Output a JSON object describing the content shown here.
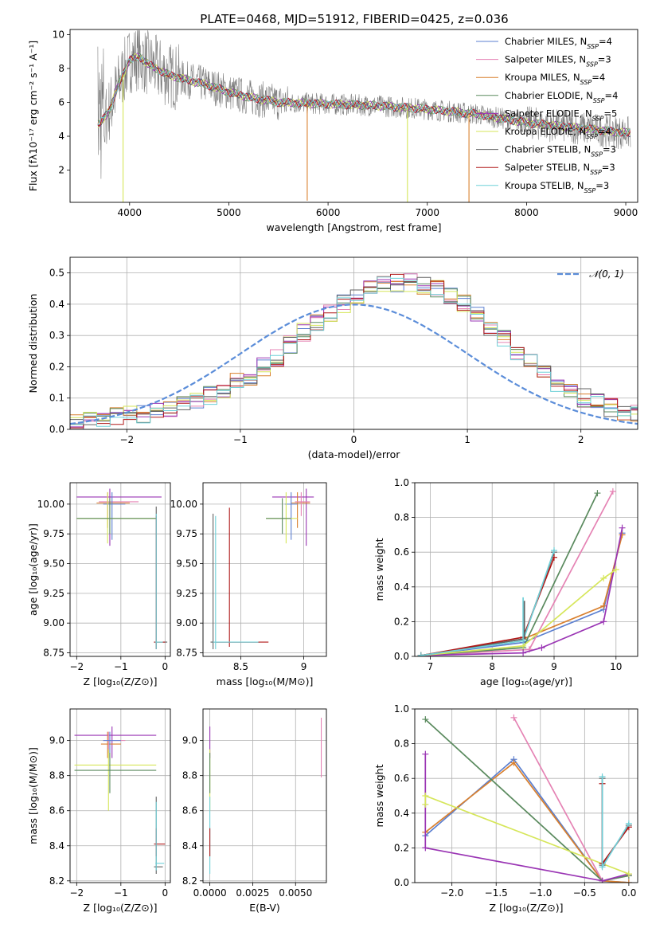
{
  "figure": {
    "title": "PLATE=0468, MJD=51912, FIBERID=0425, z=0.036"
  },
  "colors": {
    "chabrier_miles": "#5B7FD0",
    "salpeter_miles": "#E583B4",
    "kroupa_miles": "#D9802E",
    "chabrier_elodie": "#5A8A5E",
    "salpeter_elodie": "#9A35B4",
    "kroupa_elodie": "#D6E65A",
    "chabrier_stelib": "#606060",
    "salpeter_stelib": "#B01818",
    "kroupa_stelib": "#6FD0D8",
    "gaussian": "#5B8DD9",
    "grid": "#b0b0b0"
  },
  "chart_data": [
    {
      "id": "spectrum",
      "type": "line",
      "xlabel": "wavelength [Angstrom, rest frame]",
      "ylabel": "Flux [fλ10⁻¹⁷ erg cm⁻² s⁻¹ A⁻¹]",
      "xlim": [
        3400,
        9120
      ],
      "ylim": [
        0.1,
        10.3
      ],
      "xticks": [
        4000,
        5000,
        6000,
        7000,
        8000,
        9000
      ],
      "yticks": [
        2,
        4,
        6,
        8,
        10
      ],
      "grid": false,
      "legend": "top-right",
      "legend_entries": [
        {
          "label": "Chabrier MILES, N_SSP=4",
          "key": "chabrier_miles"
        },
        {
          "label": "Salpeter MILES, N_SSP=3",
          "key": "salpeter_miles"
        },
        {
          "label": "Kroupa MILES, N_SSP=4",
          "key": "kroupa_miles"
        },
        {
          "label": "Chabrier ELODIE, N_SSP=4",
          "key": "chabrier_elodie"
        },
        {
          "label": "Salpeter ELODIE, N_SSP=5",
          "key": "salpeter_elodie"
        },
        {
          "label": "Kroupa ELODIE, N_SSP=4",
          "key": "kroupa_elodie"
        },
        {
          "label": "Chabrier STELIB, N_SSP=3",
          "key": "chabrier_stelib"
        },
        {
          "label": "Salpeter STELIB, N_SSP=3",
          "key": "salpeter_stelib"
        },
        {
          "label": "Kroupa STELIB, N_SSP=3",
          "key": "kroupa_stelib"
        }
      ],
      "model_continuum": {
        "x": [
          3700,
          3800,
          3900,
          4000,
          4100,
          4200,
          4400,
          4600,
          4800,
          5000,
          5200,
          5500,
          6000,
          6500,
          7000,
          7500,
          8000,
          8500,
          9000
        ],
        "y": [
          4.7,
          5.6,
          7.2,
          8.5,
          8.7,
          8.2,
          7.6,
          7.3,
          7.0,
          6.6,
          6.3,
          6.0,
          5.9,
          5.8,
          5.6,
          5.3,
          4.8,
          4.5,
          4.2
        ]
      },
      "absorption_dips": [
        {
          "x": 3934,
          "y": 0.1,
          "key": "kroupa_elodie"
        },
        {
          "x": 5790,
          "y": 0.2,
          "key": "kroupa_miles"
        },
        {
          "x": 6800,
          "y": 0.1,
          "key": "kroupa_elodie"
        },
        {
          "x": 7420,
          "y": 0.1,
          "key": "kroupa_miles"
        }
      ]
    },
    {
      "id": "residuals",
      "type": "histogram",
      "xlabel": "(data-model)/error",
      "ylabel": "Normed distribution",
      "xlim": [
        -2.5,
        2.5
      ],
      "ylim": [
        0,
        0.55
      ],
      "xticks": [
        -2,
        -1,
        0,
        1,
        2
      ],
      "yticks": [
        0.0,
        0.1,
        0.2,
        0.3,
        0.4,
        0.5
      ],
      "grid": true,
      "legend": "top-right",
      "gaussian_label": "𝒩(0, 1)",
      "bin_width": 0.1176,
      "x_start": -2.5,
      "mean_profile": [
        0.02,
        0.025,
        0.03,
        0.04,
        0.045,
        0.05,
        0.06,
        0.07,
        0.08,
        0.095,
        0.11,
        0.13,
        0.15,
        0.17,
        0.2,
        0.23,
        0.27,
        0.31,
        0.34,
        0.37,
        0.4,
        0.43,
        0.45,
        0.46,
        0.47,
        0.47,
        0.46,
        0.45,
        0.43,
        0.4,
        0.37,
        0.33,
        0.29,
        0.25,
        0.21,
        0.18,
        0.15,
        0.12,
        0.1,
        0.085,
        0.07,
        0.06,
        0.05,
        0.04,
        0.035,
        0.03
      ]
    },
    {
      "id": "age_vs_Z",
      "type": "errorbar",
      "xlabel": "Z [log₁₀(Z/Z⊙)]",
      "ylabel": "age  [log₁₀(age/yr)]",
      "xlim": [
        -2.15,
        0.12
      ],
      "ylim": [
        8.72,
        10.18
      ],
      "xticks": [
        -2,
        -1,
        0
      ],
      "yticks": [
        8.75,
        9.0,
        9.25,
        9.5,
        9.75,
        10.0
      ],
      "grid": true,
      "points": [
        {
          "x": -1.25,
          "y": 10.06,
          "xlo": -2.0,
          "xhi": -0.08,
          "ylo": 9.65,
          "yhi": 10.13,
          "key": "salpeter_elodie"
        },
        {
          "x": -1.3,
          "y": 10.01,
          "xlo": -1.55,
          "xhi": -0.8,
          "ylo": 9.8,
          "yhi": 10.1,
          "key": "kroupa_miles"
        },
        {
          "x": -1.3,
          "y": 10.02,
          "xlo": -1.5,
          "xhi": -0.6,
          "ylo": 9.9,
          "yhi": 10.1,
          "key": "salpeter_miles"
        },
        {
          "x": -1.2,
          "y": 10.0,
          "xlo": -1.4,
          "xhi": -0.9,
          "ylo": 9.7,
          "yhi": 10.1,
          "key": "chabrier_miles"
        },
        {
          "x": -1.3,
          "y": 9.88,
          "xlo": -2.0,
          "xhi": -0.2,
          "ylo": 9.67,
          "yhi": 10.1,
          "key": "kroupa_elodie"
        },
        {
          "x": -1.25,
          "y": 9.88,
          "xlo": -2.0,
          "xhi": -0.2,
          "ylo": 9.75,
          "yhi": 10.05,
          "key": "chabrier_elodie"
        },
        {
          "x": -0.2,
          "y": 8.84,
          "xlo": -0.25,
          "xhi": 0.05,
          "ylo": 8.78,
          "yhi": 9.98,
          "key": "chabrier_stelib"
        },
        {
          "x": -0.2,
          "y": 8.84,
          "xlo": -0.25,
          "xhi": 0.0,
          "ylo": 8.78,
          "yhi": 9.9,
          "key": "salpeter_stelib"
        },
        {
          "x": -0.2,
          "y": 8.84,
          "xlo": -0.22,
          "xhi": -0.05,
          "ylo": 8.78,
          "yhi": 9.92,
          "key": "kroupa_stelib"
        }
      ]
    },
    {
      "id": "age_vs_mass",
      "type": "errorbar",
      "xlabel": "mass [log₁₀(M/M⊙)]",
      "ylabel": "",
      "xlim": [
        8.2,
        9.18
      ],
      "ylim": [
        8.72,
        10.18
      ],
      "xticks": [
        8.5,
        9.0
      ],
      "yticks": [
        8.75,
        9.0,
        9.25,
        9.5,
        9.75,
        10.0
      ],
      "grid": true,
      "points": [
        {
          "x": 9.02,
          "y": 10.06,
          "xlo": 8.75,
          "xhi": 9.08,
          "ylo": 9.65,
          "yhi": 10.13,
          "key": "salpeter_elodie"
        },
        {
          "x": 8.95,
          "y": 10.01,
          "xlo": 8.9,
          "xhi": 9.05,
          "ylo": 9.8,
          "yhi": 10.1,
          "key": "kroupa_miles"
        },
        {
          "x": 8.98,
          "y": 10.02,
          "xlo": 8.93,
          "xhi": 9.05,
          "ylo": 9.9,
          "yhi": 10.1,
          "key": "salpeter_miles"
        },
        {
          "x": 8.9,
          "y": 10.0,
          "xlo": 8.85,
          "xhi": 8.95,
          "ylo": 9.7,
          "yhi": 10.1,
          "key": "chabrier_miles"
        },
        {
          "x": 8.86,
          "y": 9.88,
          "xlo": 8.7,
          "xhi": 8.95,
          "ylo": 9.67,
          "yhi": 10.1,
          "key": "kroupa_elodie"
        },
        {
          "x": 8.83,
          "y": 9.88,
          "xlo": 8.7,
          "xhi": 8.9,
          "ylo": 9.75,
          "yhi": 10.05,
          "key": "chabrier_elodie"
        },
        {
          "x": 8.28,
          "y": 8.84,
          "xlo": 8.26,
          "xhi": 8.65,
          "ylo": 8.78,
          "yhi": 9.92,
          "key": "chabrier_stelib"
        },
        {
          "x": 8.41,
          "y": 8.84,
          "xlo": 8.3,
          "xhi": 8.72,
          "ylo": 8.8,
          "yhi": 9.97,
          "key": "salpeter_stelib"
        },
        {
          "x": 8.3,
          "y": 8.84,
          "xlo": 8.28,
          "xhi": 8.64,
          "ylo": 8.78,
          "yhi": 9.9,
          "key": "kroupa_stelib"
        }
      ]
    },
    {
      "id": "weight_vs_age",
      "type": "line",
      "xlabel": "age  [log₁₀(age/yr)]",
      "ylabel": "mass weight",
      "xlim": [
        6.75,
        10.35
      ],
      "ylim": [
        0,
        1
      ],
      "xticks": [
        7,
        8,
        9,
        10
      ],
      "yticks": [
        0.0,
        0.2,
        0.4,
        0.6,
        0.8,
        1.0
      ],
      "grid": true,
      "series": [
        {
          "key": "chabrier_miles",
          "x": [
            6.85,
            8.5,
            9.8,
            10.1
          ],
          "y": [
            0.005,
            0.08,
            0.27,
            0.71
          ]
        },
        {
          "key": "salpeter_miles",
          "x": [
            6.85,
            8.6,
            9.95
          ],
          "y": [
            0.005,
            0.04,
            0.95
          ]
        },
        {
          "key": "kroupa_miles",
          "x": [
            6.85,
            8.5,
            9.8,
            10.1
          ],
          "y": [
            0.005,
            0.1,
            0.29,
            0.7
          ]
        },
        {
          "key": "chabrier_elodie",
          "x": [
            6.85,
            8.5,
            9.7
          ],
          "y": [
            0.005,
            0.05,
            0.94
          ]
        },
        {
          "key": "salpeter_elodie",
          "x": [
            6.85,
            8.5,
            8.8,
            9.8,
            10.1
          ],
          "y": [
            0.005,
            0.02,
            0.05,
            0.2,
            0.74
          ]
        },
        {
          "key": "kroupa_elodie",
          "x": [
            6.85,
            8.5,
            9.8,
            10.0
          ],
          "y": [
            0.005,
            0.06,
            0.45,
            0.5
          ]
        },
        {
          "key": "chabrier_stelib",
          "x": [
            6.85,
            8.5,
            9.0
          ],
          "y": [
            0.005,
            0.1,
            0.6
          ]
        },
        {
          "key": "salpeter_stelib",
          "x": [
            6.85,
            8.5,
            9.0
          ],
          "y": [
            0.005,
            0.11,
            0.57
          ]
        },
        {
          "key": "kroupa_stelib",
          "x": [
            6.85,
            8.5,
            9.0
          ],
          "y": [
            0.005,
            0.09,
            0.61
          ]
        }
      ],
      "spikes": [
        {
          "x": 8.5,
          "y0": 0.1,
          "y1": 0.34,
          "key": "kroupa_stelib"
        },
        {
          "x": 8.52,
          "y0": 0.1,
          "y1": 0.32,
          "key": "chabrier_stelib"
        }
      ]
    },
    {
      "id": "mass_vs_Z",
      "type": "errorbar",
      "xlabel": "Z [log₁₀(Z/Z⊙)]",
      "ylabel": "mass [log₁₀(M/M⊙)]",
      "xlim": [
        -2.15,
        0.12
      ],
      "ylim": [
        8.19,
        9.18
      ],
      "xticks": [
        -2,
        -1,
        0
      ],
      "yticks": [
        8.2,
        8.4,
        8.6,
        8.8,
        9.0
      ],
      "grid": true,
      "points": [
        {
          "x": -1.2,
          "y": 9.03,
          "xlo": -2.05,
          "xhi": -0.2,
          "ylo": 8.9,
          "yhi": 9.08,
          "key": "salpeter_elodie"
        },
        {
          "x": -1.3,
          "y": 8.98,
          "xlo": -1.45,
          "xhi": -1.0,
          "ylo": 8.9,
          "yhi": 9.05,
          "key": "kroupa_miles"
        },
        {
          "x": -1.28,
          "y": 9.0,
          "xlo": -1.4,
          "xhi": -0.9,
          "ylo": 8.93,
          "yhi": 9.05,
          "key": "salpeter_miles"
        },
        {
          "x": -1.25,
          "y": 9.0,
          "xlo": -1.4,
          "xhi": -1.0,
          "ylo": 8.9,
          "yhi": 9.05,
          "key": "chabrier_miles"
        },
        {
          "x": -1.28,
          "y": 8.86,
          "xlo": -2.05,
          "xhi": -0.2,
          "ylo": 8.6,
          "yhi": 8.95,
          "key": "kroupa_elodie"
        },
        {
          "x": -1.25,
          "y": 8.83,
          "xlo": -2.05,
          "xhi": -0.2,
          "ylo": 8.7,
          "yhi": 8.93,
          "key": "chabrier_elodie"
        },
        {
          "x": -0.2,
          "y": 8.28,
          "xlo": -0.25,
          "xhi": -0.05,
          "ylo": 8.24,
          "yhi": 8.68,
          "key": "chabrier_stelib"
        },
        {
          "x": -0.2,
          "y": 8.41,
          "xlo": -0.25,
          "xhi": 0.0,
          "ylo": 8.34,
          "yhi": 8.5,
          "key": "salpeter_stelib"
        },
        {
          "x": -0.2,
          "y": 8.3,
          "xlo": -0.22,
          "xhi": -0.02,
          "ylo": 8.26,
          "yhi": 8.65,
          "key": "kroupa_stelib"
        }
      ]
    },
    {
      "id": "mass_vs_EBV",
      "type": "errorbar",
      "xlabel": "E(B-V)",
      "ylabel": "",
      "xlim": [
        -0.0004,
        0.0068
      ],
      "ylim": [
        8.19,
        9.18
      ],
      "xticks": [
        0.0,
        0.0025,
        0.005
      ],
      "xticklabels": [
        "0.0000",
        "0.0025",
        "0.0050"
      ],
      "yticks": [
        8.2,
        8.4,
        8.6,
        8.8,
        9.0
      ],
      "grid": true,
      "vlines": [
        {
          "x": 0.0,
          "y0": 8.9,
          "y1": 9.08,
          "key": "salpeter_elodie"
        },
        {
          "x": 0.0,
          "y0": 8.6,
          "y1": 8.95,
          "key": "kroupa_elodie"
        },
        {
          "x": 0.0,
          "y0": 8.24,
          "y1": 8.68,
          "key": "kroupa_stelib"
        },
        {
          "x": 0.0,
          "y0": 8.34,
          "y1": 8.5,
          "key": "salpeter_stelib"
        },
        {
          "x": 0.0,
          "y0": 8.7,
          "y1": 8.93,
          "key": "chabrier_elodie"
        },
        {
          "x": 0.0065,
          "y0": 8.79,
          "y1": 9.13,
          "key": "salpeter_miles"
        }
      ]
    },
    {
      "id": "weight_vs_Z",
      "type": "line",
      "xlabel": "Z [log₁₀(Z/Z⊙)]",
      "ylabel": "mass weight",
      "xlim": [
        -2.42,
        0.1
      ],
      "ylim": [
        0,
        1
      ],
      "xticks": [
        -2.0,
        -1.5,
        -1.0,
        -0.5,
        0.0
      ],
      "yticks": [
        0.0,
        0.2,
        0.4,
        0.6,
        0.8,
        1.0
      ],
      "grid": true,
      "series": [
        {
          "key": "chabrier_miles",
          "x": [
            -2.3,
            -1.3,
            -0.3,
            0.0
          ],
          "y": [
            0.27,
            0.71,
            0.01,
            0.0
          ]
        },
        {
          "key": "kroupa_miles",
          "x": [
            -2.3,
            -1.3,
            -0.3,
            0.0
          ],
          "y": [
            0.29,
            0.69,
            0.01,
            0.0
          ]
        },
        {
          "key": "salpeter_miles",
          "x": [
            -1.3,
            -0.3,
            0.0
          ],
          "y": [
            0.95,
            0.01,
            0.04
          ]
        },
        {
          "key": "chabrier_elodie",
          "x": [
            -2.3,
            -0.3,
            0.0
          ],
          "y": [
            0.94,
            0.01,
            0.04
          ]
        },
        {
          "key": "salpeter_elodie",
          "x": [
            -2.3,
            -2.3,
            -0.3,
            0.0
          ],
          "y": [
            0.74,
            0.2,
            0.01,
            0.05
          ]
        },
        {
          "key": "kroupa_elodie",
          "x": [
            -2.3,
            -2.3,
            0.0
          ],
          "y": [
            0.45,
            0.5,
            0.05
          ]
        },
        {
          "key": "chabrier_stelib",
          "x": [
            -0.3,
            -0.3,
            0.0
          ],
          "y": [
            0.6,
            0.1,
            0.33
          ]
        },
        {
          "key": "salpeter_stelib",
          "x": [
            -0.3,
            -0.3,
            0.0
          ],
          "y": [
            0.57,
            0.11,
            0.32
          ]
        },
        {
          "key": "kroupa_stelib",
          "x": [
            -0.3,
            -0.3,
            0.0
          ],
          "y": [
            0.61,
            0.09,
            0.34
          ]
        }
      ]
    }
  ]
}
